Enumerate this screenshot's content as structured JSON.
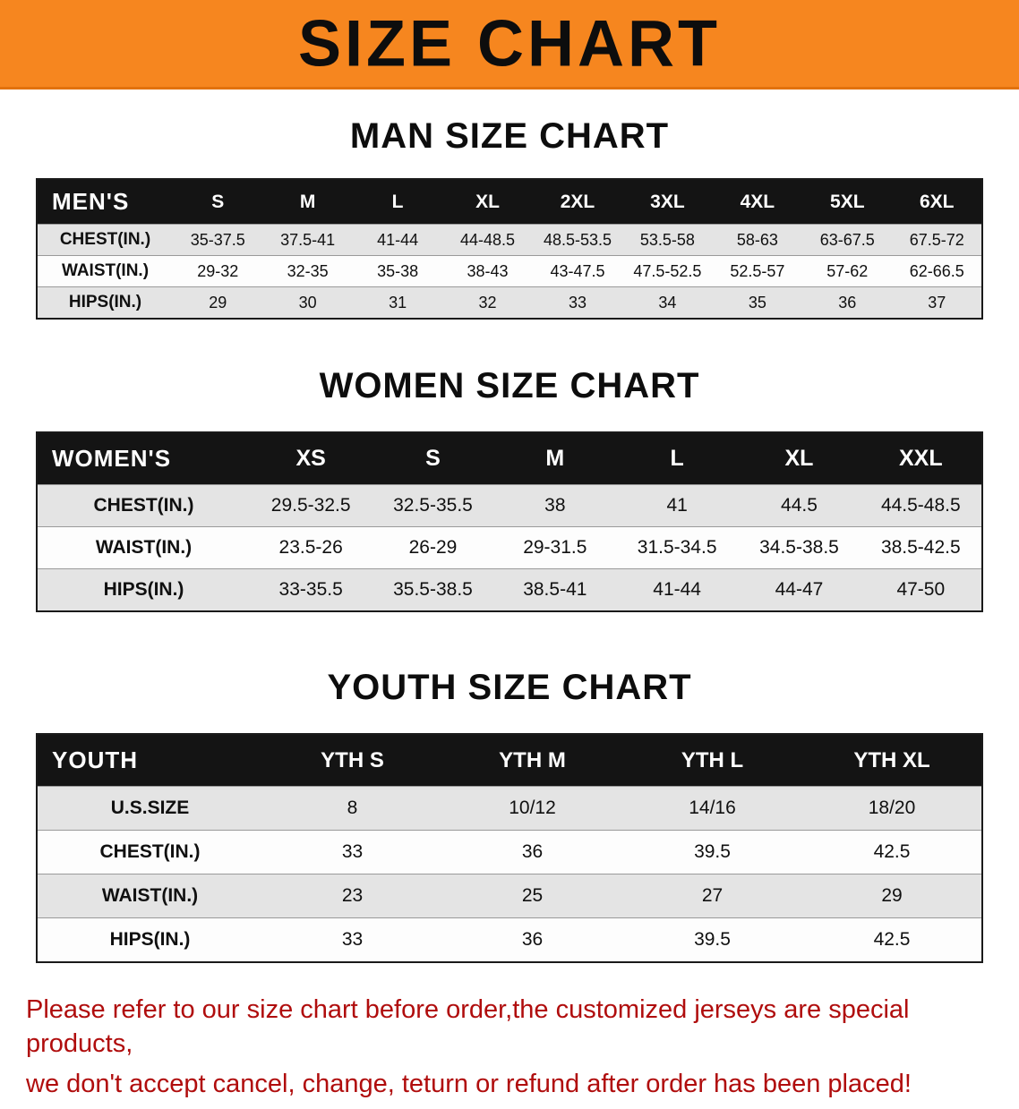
{
  "banner": {
    "title": "SIZE CHART"
  },
  "colors": {
    "banner_bg": "#f6861f",
    "header_bg": "#141414",
    "row_alt": "#e4e4e4",
    "row_light": "#fdfdfd",
    "note_red": "#b00d0d"
  },
  "sections": {
    "men": {
      "heading": "MAN SIZE CHART",
      "table": {
        "title": "MEN'S",
        "columns": [
          "S",
          "M",
          "L",
          "XL",
          "2XL",
          "3XL",
          "4XL",
          "5XL",
          "6XL"
        ],
        "rows": [
          {
            "label": "CHEST(IN.)",
            "values": [
              "35-37.5",
              "37.5-41",
              "41-44",
              "44-48.5",
              "48.5-53.5",
              "53.5-58",
              "58-63",
              "63-67.5",
              "67.5-72"
            ]
          },
          {
            "label": "WAIST(IN.)",
            "values": [
              "29-32",
              "32-35",
              "35-38",
              "38-43",
              "43-47.5",
              "47.5-52.5",
              "52.5-57",
              "57-62",
              "62-66.5"
            ]
          },
          {
            "label": "HIPS(IN.)",
            "values": [
              "29",
              "30",
              "31",
              "32",
              "33",
              "34",
              "35",
              "36",
              "37"
            ]
          }
        ]
      }
    },
    "women": {
      "heading": "WOMEN SIZE CHART",
      "table": {
        "title": "WOMEN'S",
        "columns": [
          "XS",
          "S",
          "M",
          "L",
          "XL",
          "XXL"
        ],
        "rows": [
          {
            "label": "CHEST(IN.)",
            "values": [
              "29.5-32.5",
              "32.5-35.5",
              "38",
              "41",
              "44.5",
              "44.5-48.5"
            ]
          },
          {
            "label": "WAIST(IN.)",
            "values": [
              "23.5-26",
              "26-29",
              "29-31.5",
              "31.5-34.5",
              "34.5-38.5",
              "38.5-42.5"
            ]
          },
          {
            "label": "HIPS(IN.)",
            "values": [
              "33-35.5",
              "35.5-38.5",
              "38.5-41",
              "41-44",
              "44-47",
              "47-50"
            ]
          }
        ]
      }
    },
    "youth": {
      "heading": "YOUTH SIZE CHART",
      "table": {
        "title": "YOUTH",
        "columns": [
          "YTH S",
          "YTH M",
          "YTH L",
          "YTH XL"
        ],
        "rows": [
          {
            "label": "U.S.SIZE",
            "values": [
              "8",
              "10/12",
              "14/16",
              "18/20"
            ]
          },
          {
            "label": "CHEST(IN.)",
            "values": [
              "33",
              "36",
              "39.5",
              "42.5"
            ]
          },
          {
            "label": "WAIST(IN.)",
            "values": [
              "23",
              "25",
              "27",
              "29"
            ]
          },
          {
            "label": "HIPS(IN.)",
            "values": [
              "33",
              "36",
              "39.5",
              "42.5"
            ]
          }
        ]
      }
    }
  },
  "note": {
    "line1": "Please refer to our size chart before order,the customized jerseys are special products,",
    "line2": "we don't accept cancel, change, teturn or refund after order has been placed!"
  }
}
